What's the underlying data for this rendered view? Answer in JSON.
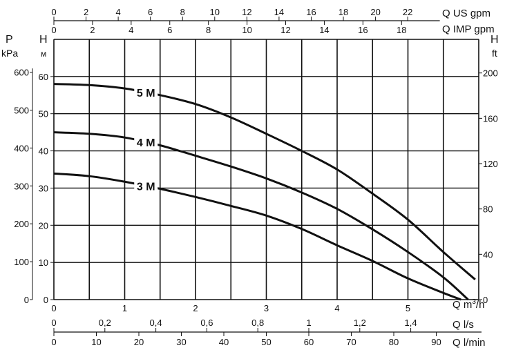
{
  "chart_data": {
    "type": "line",
    "x": {
      "label": "Q m³/h",
      "label_main": "Q m",
      "label_sup": "3",
      "label_tail": "/h",
      "range": [
        0,
        6
      ],
      "ticks": [
        0,
        1,
        2,
        3,
        4,
        5
      ],
      "grid_step": 0.5
    },
    "y": {
      "label_top": "H",
      "label_unit": "м",
      "range": [
        0,
        70
      ],
      "ticks": [
        0,
        10,
        20,
        30,
        40,
        50,
        60
      ],
      "grid_step": 10
    },
    "y_left_kpa": {
      "label_top": "P",
      "label_unit": "kPa",
      "ticks": [
        0,
        100,
        200,
        300,
        400,
        500,
        600
      ]
    },
    "y_right_ft": {
      "label_top": "H",
      "label_unit": "ft",
      "ticks": [
        0,
        40,
        80,
        120,
        160,
        200
      ]
    },
    "top_axis_us": {
      "label": "Q US gpm",
      "ticks": [
        "0",
        "2",
        "4",
        "6",
        "8",
        "10",
        "12",
        "14",
        "16",
        "18",
        "20",
        "22"
      ]
    },
    "top_axis_imp": {
      "label": "Q IMP gpm",
      "ticks": [
        "0",
        "2",
        "4",
        "6",
        "8",
        "10",
        "12",
        "14",
        "16",
        "18"
      ]
    },
    "bottom_axis_ls": {
      "label": "Q l/s",
      "ticks": [
        "0",
        "0,2",
        "0,4",
        "0,6",
        "0,8",
        "1",
        "1,2",
        "1,4"
      ]
    },
    "bottom_axis_lmin": {
      "label": "Q l/min",
      "ticks": [
        "0",
        "10",
        "20",
        "30",
        "40",
        "50",
        "60",
        "70",
        "80",
        "90"
      ]
    },
    "grid": true,
    "series": [
      {
        "name": "5 M",
        "x": [
          0,
          0.5,
          1,
          1.5,
          2,
          2.5,
          3,
          3.5,
          4,
          4.5,
          5,
          5.5,
          5.95
        ],
        "y": [
          58,
          57.7,
          56.8,
          55,
          52.6,
          49,
          44.6,
          40,
          35,
          28.5,
          21.5,
          12.8,
          5.4
        ]
      },
      {
        "name": "4 M",
        "x": [
          0,
          0.5,
          1,
          1.5,
          2,
          2.5,
          3,
          3.5,
          4,
          4.5,
          5,
          5.5,
          5.85
        ],
        "y": [
          45,
          44.6,
          43.6,
          41.5,
          38.7,
          35.8,
          32.6,
          28.8,
          24.4,
          18.9,
          12.8,
          6,
          0
        ]
      },
      {
        "name": "3 M",
        "x": [
          0,
          0.5,
          1,
          1.5,
          2,
          2.5,
          3,
          3.5,
          4,
          4.5,
          5,
          5.5,
          5.75
        ],
        "y": [
          33.9,
          33.2,
          31.7,
          29.8,
          27.6,
          25.2,
          22.6,
          19,
          14.6,
          10.4,
          5.7,
          1.8,
          0
        ]
      }
    ]
  }
}
